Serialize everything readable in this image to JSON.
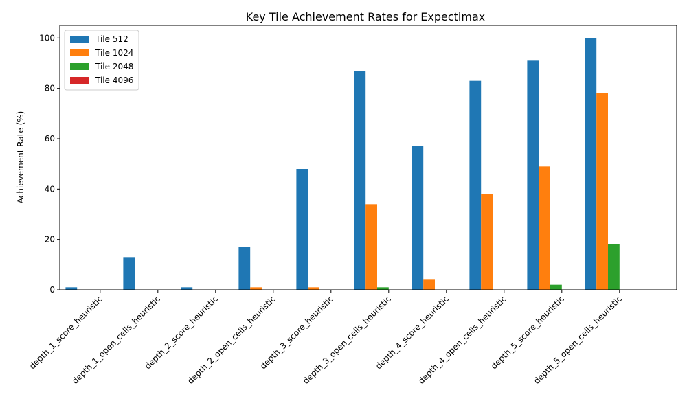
{
  "chart_data": {
    "type": "bar",
    "title": "Key Tile Achievement Rates for Expectimax",
    "xlabel": "",
    "ylabel": "Achievement Rate (%)",
    "ylim": [
      0,
      105
    ],
    "yticks": [
      0,
      20,
      40,
      60,
      80,
      100
    ],
    "grid": false,
    "legend_position": "top-left",
    "categories": [
      "depth_1_score_heuristic",
      "depth_1_open_cells_heuristic",
      "depth_2_score_heuristic",
      "depth_2_open_cells_heuristic",
      "depth_3_score_heuristic",
      "depth_3_open_cells_heuristic",
      "depth_4_score_heuristic",
      "depth_4_open_cells_heuristic",
      "depth_5_score_heuristic",
      "depth_5_open_cells_heuristic"
    ],
    "series": [
      {
        "name": "Tile 512",
        "color": "#1f77b4",
        "values": [
          1,
          13,
          1,
          17,
          48,
          87,
          57,
          83,
          91,
          100
        ]
      },
      {
        "name": "Tile 1024",
        "color": "#ff7f0e",
        "values": [
          0,
          0,
          0,
          1,
          1,
          34,
          4,
          38,
          49,
          78
        ]
      },
      {
        "name": "Tile 2048",
        "color": "#2ca02c",
        "values": [
          0,
          0,
          0,
          0,
          0,
          1,
          0,
          0,
          2,
          18
        ]
      },
      {
        "name": "Tile 4096",
        "color": "#d62728",
        "values": [
          0,
          0,
          0,
          0,
          0,
          0,
          0,
          0,
          0,
          0
        ]
      }
    ]
  }
}
